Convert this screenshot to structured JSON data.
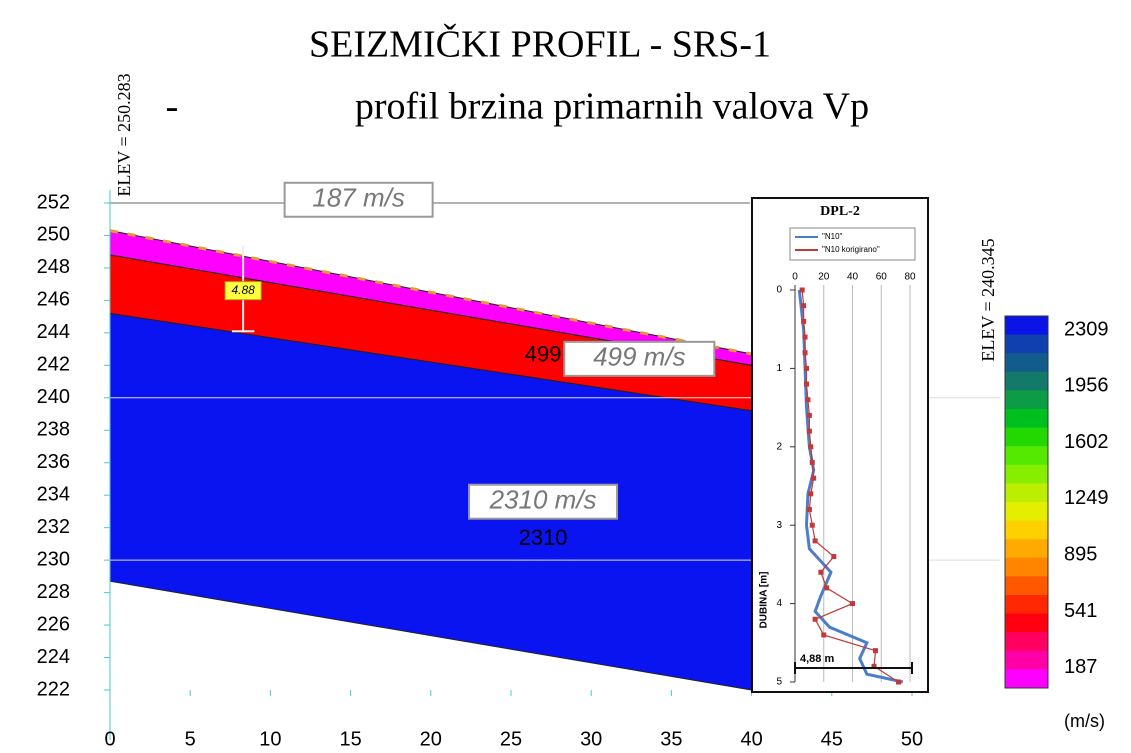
{
  "chart_data": [
    {
      "type": "profile",
      "title": "SEIZMIČKI PROFIL - SRS-1",
      "subtitle_dash": "-",
      "subtitle": "profil brzina primarnih valova Vp",
      "x": [
        0,
        40
      ],
      "xlim": [
        0,
        50
      ],
      "xticks": [
        0,
        5,
        10,
        15,
        20,
        25,
        30,
        35,
        40,
        45,
        50
      ],
      "ylim": [
        222,
        252
      ],
      "yticks": [
        222,
        224,
        226,
        228,
        230,
        232,
        234,
        236,
        238,
        240,
        242,
        244,
        246,
        248,
        250,
        252
      ],
      "hlines": [
        252,
        240,
        230
      ],
      "layers": [
        {
          "label": "187",
          "box_label": "187 m/s",
          "color": "#ff00ff",
          "top": [
            250.3,
            242.7
          ],
          "bottom": [
            248.8,
            242.0
          ]
        },
        {
          "label": "499",
          "box_label": "499 m/s",
          "color": "#ff0000",
          "top": [
            248.8,
            242.0
          ],
          "bottom": [
            245.2,
            239.2
          ]
        },
        {
          "label": "2310",
          "box_label": "2310 m/s",
          "color": "#0a14f0",
          "top": [
            245.2,
            239.2
          ],
          "bottom": [
            228.7,
            222.0
          ]
        }
      ],
      "elev_left": "ELEV = 250.283",
      "elev_right": "ELEV = 240.345",
      "thickness_label": "4.88",
      "colorbar": {
        "labels": [
          2309,
          1956,
          1602,
          1249,
          895,
          541,
          187
        ],
        "unit": "(m/s)",
        "colors": [
          "#0a14e6",
          "#1040b0",
          "#125c8c",
          "#137a6a",
          "#0c9c46",
          "#00c020",
          "#22d800",
          "#55e800",
          "#88ee00",
          "#bbee00",
          "#e6ee00",
          "#ffd000",
          "#ffaa00",
          "#ff8400",
          "#ff5800",
          "#ff2800",
          "#ff0010",
          "#ff0060",
          "#ff00a8",
          "#ff00ff"
        ]
      }
    },
    {
      "type": "line",
      "title": "DPL-2",
      "ylabel": "DUBINA [m]",
      "xlim": [
        0,
        80
      ],
      "xticks": [
        0,
        20,
        40,
        60,
        80
      ],
      "ylim": [
        0,
        5
      ],
      "yticks": [
        0,
        1,
        2,
        3,
        4,
        5
      ],
      "annotation": "4,88 m",
      "series": [
        {
          "name": "\"N10\"",
          "color": "#4a7ec8",
          "depth": [
            0,
            0.5,
            1.0,
            1.5,
            2.0,
            2.3,
            2.6,
            3.0,
            3.3,
            3.6,
            3.9,
            4.1,
            4.3,
            4.5,
            4.7,
            4.9,
            5.0
          ],
          "values": [
            3,
            6,
            7,
            8,
            10,
            13,
            9,
            8,
            10,
            25,
            18,
            14,
            24,
            50,
            45,
            50,
            75
          ]
        },
        {
          "name": "\"N10 korigirano\"",
          "color": "#c0393b",
          "depth": [
            0,
            0.2,
            0.4,
            0.6,
            0.8,
            1.0,
            1.2,
            1.4,
            1.6,
            1.8,
            2.0,
            2.2,
            2.4,
            2.6,
            2.8,
            3.0,
            3.2,
            3.4,
            3.6,
            3.8,
            4.0,
            4.2,
            4.4,
            4.6,
            4.8,
            5.0
          ],
          "values": [
            5,
            6,
            6,
            7,
            7,
            8,
            8,
            9,
            10,
            10,
            11,
            12,
            13,
            11,
            10,
            12,
            14,
            27,
            18,
            22,
            40,
            14,
            20,
            56,
            55,
            72
          ]
        }
      ]
    }
  ]
}
